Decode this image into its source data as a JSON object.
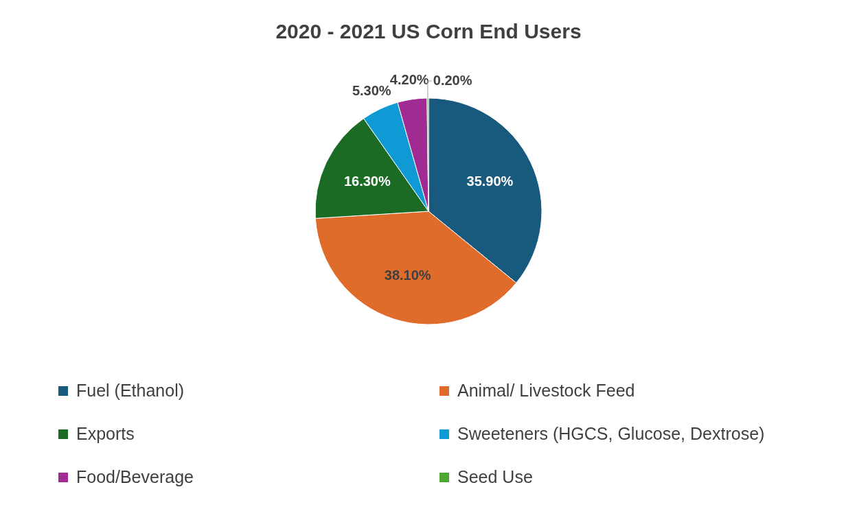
{
  "chart_data": {
    "type": "pie",
    "title": "2020 - 2021 US Corn End Users",
    "categories": [
      "Fuel (Ethanol)",
      "Animal/ Livestock Feed",
      "Exports",
      "Sweeteners (HGCS, Glucose, Dextrose)",
      "Food/Beverage",
      "Seed Use"
    ],
    "values": [
      35.9,
      38.1,
      16.3,
      5.3,
      4.2,
      0.2
    ],
    "colors": [
      "#175a7e",
      "#e06c2c",
      "#1b6b25",
      "#0f9ad6",
      "#a02b93",
      "#4ea72e"
    ],
    "value_labels": [
      "35.90%",
      "38.10%",
      "16.30%",
      "5.30%",
      "4.20%",
      "0.20%"
    ],
    "legend": "bottom"
  }
}
